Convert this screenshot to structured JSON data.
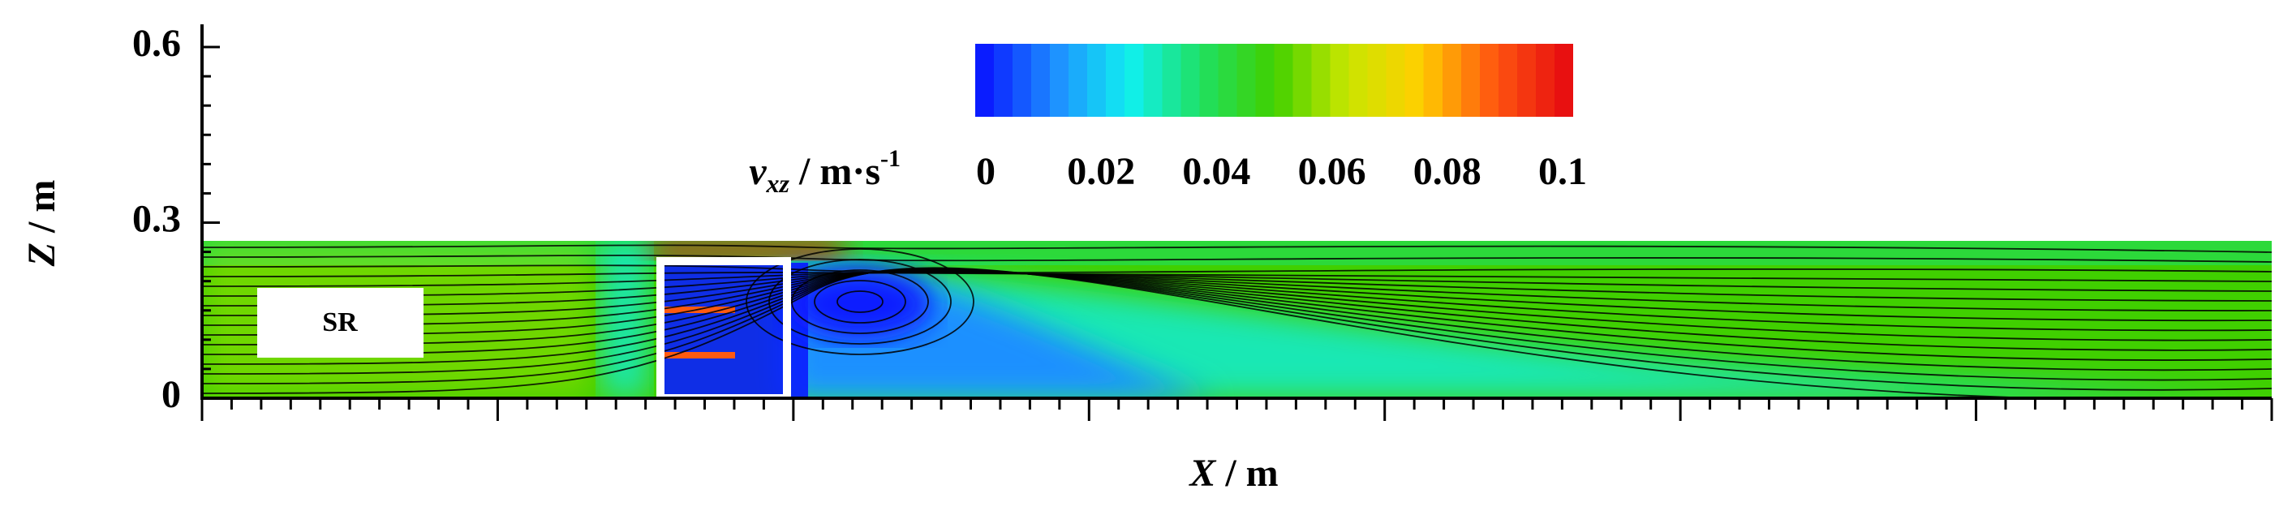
{
  "chart_data": {
    "type": "contour",
    "y_label": {
      "symbol": "Z",
      "unit": "/ m"
    },
    "x_label": {
      "symbol": "X",
      "unit": "/ m"
    },
    "ylim": [
      0,
      0.6
    ],
    "yticks": [
      0,
      0.3,
      0.6
    ],
    "colorbar": {
      "label": {
        "symbol": "v",
        "subscript": "xz",
        "unit": "/ m·s",
        "exponent": "-1"
      },
      "lim": [
        0,
        0.1
      ],
      "ticks": [
        0,
        0.02,
        0.04,
        0.06,
        0.08,
        0.1
      ],
      "colors": [
        "#0a1cff",
        "#1e90ff",
        "#10f0f0",
        "#20e060",
        "#40d000",
        "#c8e600",
        "#ffd000",
        "#ff5a10",
        "#e81010"
      ]
    },
    "annotation": "SR"
  }
}
